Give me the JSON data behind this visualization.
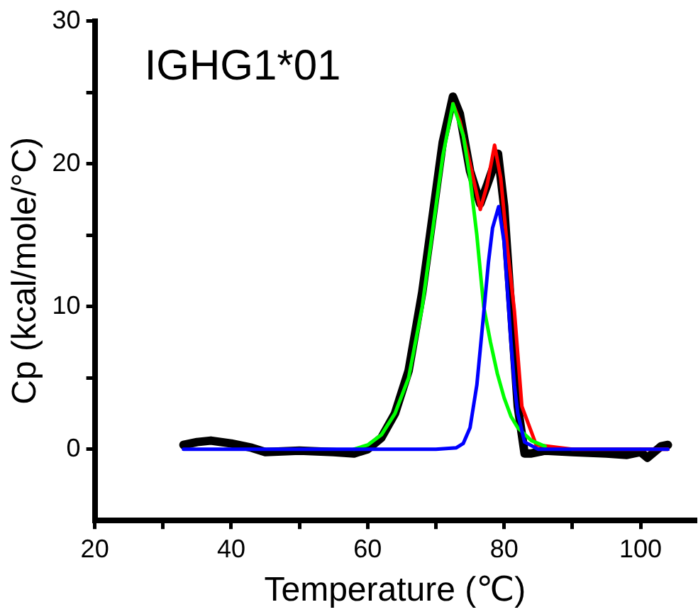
{
  "chart_data": {
    "type": "line",
    "xlabel": "Temperature (℃)",
    "ylabel": "Cp (kcal/mole/°C)",
    "annotations": [
      "IGHG1*01"
    ],
    "xlim": [
      20,
      108
    ],
    "ylim": [
      -5,
      30
    ],
    "xticks": [
      20,
      {
        "value": 30,
        "label": null
      },
      40,
      {
        "value": 50,
        "label": null
      },
      60,
      {
        "value": 70,
        "label": null
      },
      80,
      {
        "value": 90,
        "label": null
      },
      100
    ],
    "yticks": [
      0,
      {
        "value": 5,
        "label": null
      },
      10,
      {
        "value": 15,
        "label": null
      },
      20,
      {
        "value": 25,
        "label": null
      },
      30
    ],
    "grid": false,
    "legend": false,
    "marker": "none",
    "line_style": "solid",
    "series": [
      {
        "color": "#000000",
        "x": [
          33,
          35,
          37,
          40,
          43,
          45,
          50,
          55,
          58,
          60,
          62,
          64,
          66,
          68,
          70,
          71,
          72.5,
          73.5,
          75,
          76.5,
          77.5,
          79.1,
          80,
          81,
          82,
          83,
          84,
          86,
          90,
          95,
          98,
          100,
          101,
          103,
          104
        ],
        "values": [
          0.3,
          0.5,
          0.6,
          0.4,
          0.1,
          -0.2,
          -0.1,
          -0.2,
          -0.3,
          0,
          0.8,
          2.5,
          5.5,
          11,
          18,
          21.5,
          24.7,
          23.5,
          19.5,
          17.2,
          18.5,
          20.7,
          17,
          10,
          3,
          -0.3,
          -0.3,
          -0.1,
          -0.2,
          -0.3,
          -0.4,
          -0.2,
          -0.6,
          0.2,
          0.3
        ]
      },
      {
        "color": "#ff0000",
        "x": [
          72.5,
          73.5,
          75.1,
          76.5,
          77.5,
          78.6,
          79.5,
          80.5,
          81.5,
          82.6,
          84.7,
          90,
          104
        ],
        "values": [
          24.2,
          23,
          19.8,
          16.8,
          18.5,
          21.3,
          19,
          14,
          9.7,
          3,
          0.3,
          0,
          0
        ]
      },
      {
        "color": "#00ff00",
        "x": [
          58,
          60,
          62,
          64,
          66,
          68,
          70,
          71,
          72.5,
          74,
          75,
          76,
          77,
          78,
          79,
          80,
          81,
          82,
          84,
          86
        ],
        "values": [
          0,
          0.3,
          1,
          2.5,
          5,
          10,
          17,
          20.5,
          24.2,
          22,
          19,
          15,
          10,
          7.5,
          5.3,
          3.6,
          2.3,
          1.5,
          0.6,
          0.2
        ]
      },
      {
        "color": "#0000ff",
        "x": [
          33,
          70,
          73,
          74,
          75,
          76,
          76.5,
          77,
          77.7,
          78.3,
          79.2,
          80,
          80.5,
          81,
          81.5,
          82,
          83,
          85,
          104
        ],
        "values": [
          0,
          0,
          0.1,
          0.4,
          1.5,
          4.5,
          7,
          9.5,
          13.1,
          15.5,
          17,
          14.5,
          11,
          7.5,
          4.5,
          2.5,
          0.5,
          0,
          0
        ]
      }
    ]
  }
}
